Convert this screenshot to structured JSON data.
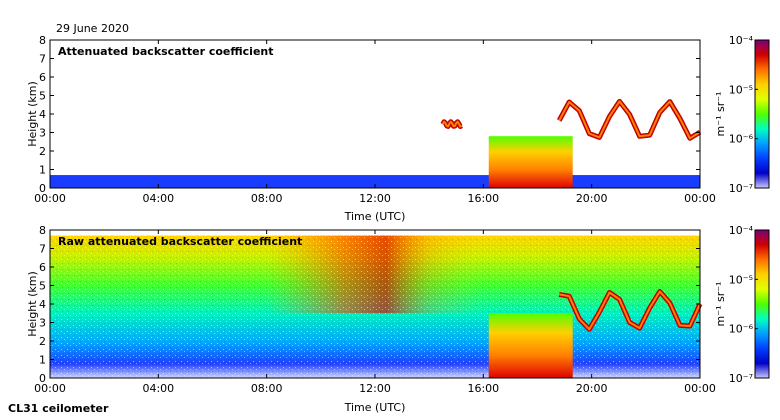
{
  "date_label": "29 June 2020",
  "footer_label": "CL31 ceilometer",
  "colorscale": {
    "unit": "m⁻¹ sr⁻¹",
    "ticks": [
      "10⁻⁴",
      "10⁻⁵",
      "10⁻⁶",
      "10⁻⁷"
    ],
    "gradient": [
      "#7a007a",
      "#d00000",
      "#ff7000",
      "#ffd000",
      "#e0ff00",
      "#50ff00",
      "#00ffc0",
      "#00a0ff",
      "#0040ff",
      "#0000c8",
      "#c8c8ff"
    ]
  },
  "chart_data": [
    {
      "type": "heatmap",
      "title": "Attenuated backscatter coefficient",
      "xlabel": "Time (UTC)",
      "ylabel": "Height (km)",
      "x_ticks": [
        "00:00",
        "04:00",
        "08:00",
        "12:00",
        "16:00",
        "20:00",
        "00:00"
      ],
      "y_ticks": [
        "0",
        "1",
        "2",
        "3",
        "4",
        "5",
        "6",
        "7",
        "8"
      ],
      "xlim": [
        0,
        24
      ],
      "ylim": [
        0,
        8
      ],
      "color_scale": "log",
      "clim": [
        1e-07,
        0.0001
      ],
      "features": [
        {
          "desc": "boundary layer aerosol",
          "time": [
            0,
            24
          ],
          "height": [
            0,
            0.7
          ],
          "value": 1e-06
        },
        {
          "desc": "precipitation / cloud",
          "time": [
            16.2,
            19.3
          ],
          "height": [
            0,
            2.8
          ],
          "value": 3e-05
        },
        {
          "desc": "cloud layer",
          "time": [
            14.5,
            15.2
          ],
          "height": [
            3.3,
            3.6
          ],
          "value": 5e-05
        },
        {
          "desc": "cloud layer",
          "time": [
            18.8,
            24
          ],
          "height": [
            2.5,
            4.8
          ],
          "value": 5e-05
        }
      ]
    },
    {
      "type": "heatmap",
      "title": "Raw attenuated backscatter coefficient",
      "xlabel": "Time (UTC)",
      "ylabel": "Height (km)",
      "x_ticks": [
        "00:00",
        "04:00",
        "08:00",
        "12:00",
        "16:00",
        "20:00",
        "00:00"
      ],
      "y_ticks": [
        "0",
        "1",
        "2",
        "3",
        "4",
        "5",
        "6",
        "7",
        "8"
      ],
      "xlim": [
        0,
        24
      ],
      "ylim": [
        0,
        8
      ],
      "color_scale": "log",
      "clim": [
        1e-07,
        0.0001
      ],
      "features": [
        {
          "desc": "noise",
          "time": [
            0,
            24
          ],
          "height": [
            0,
            7.7
          ],
          "value": 1e-06
        },
        {
          "desc": "precipitation / cloud",
          "time": [
            16.2,
            19.3
          ],
          "height": [
            0,
            3.5
          ],
          "value": 3e-05
        },
        {
          "desc": "cloud layer",
          "time": [
            18.8,
            24
          ],
          "height": [
            2.5,
            4.8
          ],
          "value": 5e-05
        }
      ]
    }
  ]
}
